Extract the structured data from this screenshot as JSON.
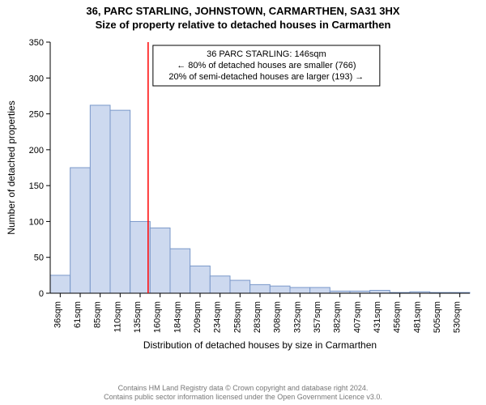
{
  "address": "36, PARC STARLING, JOHNSTOWN, CARMARTHEN, SA31 3HX",
  "chart": {
    "type": "histogram",
    "title": "Size of property relative to detached houses in Carmarthen",
    "xlabel": "Distribution of detached houses by size in Carmarthen",
    "ylabel": "Number of detached properties",
    "background_color": "#ffffff",
    "axis_color": "#000000",
    "bar_fill": "#cdd9ef",
    "bar_stroke": "#7a98c9",
    "reference_line_color": "#ff0000",
    "reference_value": 146,
    "x_categories": [
      "36sqm",
      "61sqm",
      "85sqm",
      "110sqm",
      "135sqm",
      "160sqm",
      "184sqm",
      "209sqm",
      "234sqm",
      "258sqm",
      "283sqm",
      "308sqm",
      "332sqm",
      "357sqm",
      "382sqm",
      "407sqm",
      "431sqm",
      "456sqm",
      "481sqm",
      "505sqm",
      "530sqm"
    ],
    "values": [
      25,
      175,
      262,
      255,
      100,
      91,
      62,
      38,
      24,
      18,
      12,
      10,
      8,
      8,
      3,
      3,
      4,
      1,
      2,
      1,
      1
    ],
    "ylim": [
      0,
      350
    ],
    "ytick_step": 50,
    "annotation": {
      "lines": [
        "36 PARC STARLING: 146sqm",
        "← 80% of detached houses are smaller (766)",
        "20% of semi-detached houses are larger (193) →"
      ],
      "border_color": "#000000",
      "bg_color": "#ffffff",
      "fontsize": 11
    },
    "label_fontsize": 12,
    "tick_fontsize": 11,
    "title_fontsize": 13
  },
  "footer": {
    "line1": "Contains HM Land Registry data © Crown copyright and database right 2024.",
    "line2": "Contains public sector information licensed under the Open Government Licence v3.0."
  }
}
